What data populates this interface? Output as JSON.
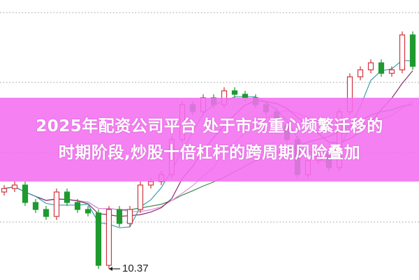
{
  "headline": {
    "line1": "2025年配资公司平台 处于市场重心频繁迁移的",
    "line2": "时期阶段,炒股十倍杠杆的跨周期风险叠加"
  },
  "chart_data": {
    "type": "candlestick",
    "grid": "horizontal dotted",
    "colors": {
      "up": "#d0343c",
      "down": "#1e9a2e",
      "ma5": "#3aa0a8",
      "ma10": "#8a2a6a",
      "ma20": "#e48ae4",
      "ma60": "#3a8a4a",
      "banner": "#f46ef0"
    },
    "open_first": 11.47,
    "close": [
      11.52,
      11.57,
      11.32,
      11.22,
      11.12,
      11.47,
      11.32,
      11.22,
      11.17,
      10.42,
      11.22,
      11.02,
      11.22,
      11.57,
      11.62,
      11.72,
      12.22,
      12.72,
      12.62,
      12.82,
      12.72,
      12.92,
      12.87,
      12.82,
      12.72,
      12.62,
      12.42,
      12.22,
      11.72,
      11.92,
      12.02,
      11.82,
      12.62,
      13.12,
      13.22,
      13.32,
      13.17,
      13.22,
      13.72,
      13.27
    ],
    "annotation": {
      "label": "10.37",
      "type": "low-marker"
    }
  }
}
